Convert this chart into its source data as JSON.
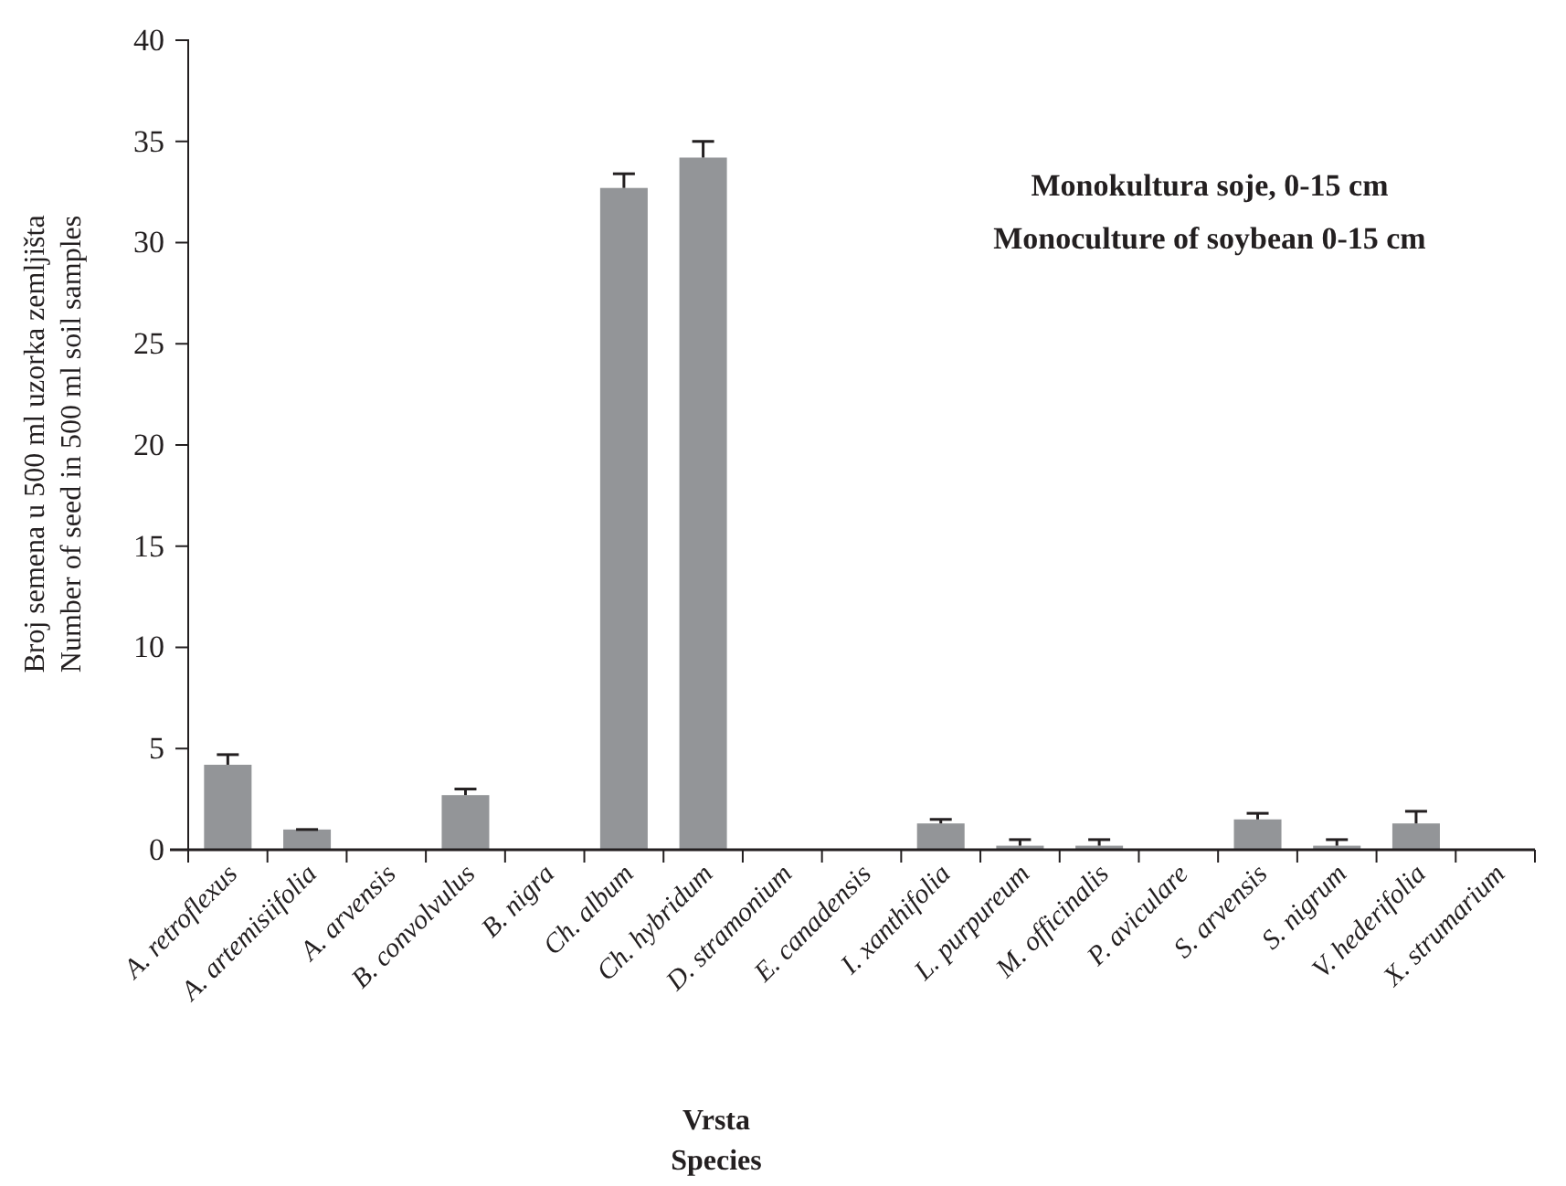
{
  "chart_data": {
    "type": "bar",
    "title": "Monokultura soje, 0-15 cm",
    "subtitle": "Monoculture of soybean 0-15 cm",
    "xlabel": "Vrsta\nSpecies",
    "ylabel": "Broj semena u 500 ml uzorka  zemljišta\nNumber of seed in 500 ml soil samples",
    "categories": [
      "A. retroflexus",
      "A. artemisiifolia",
      "A. arvensis",
      "B. convolvulus",
      "B. nigra",
      "Ch. album",
      "Ch. hybridum",
      "D. stramonium",
      "E.  canadensis",
      "I. xanthifolia",
      "L. purpureum",
      "M. officinalis",
      "P. aviculare",
      "S. arvensis",
      "S. nigrum",
      "V. hederifolia",
      "X. strumarium"
    ],
    "values": [
      4.2,
      1.0,
      0,
      2.7,
      0,
      32.7,
      34.2,
      0,
      0,
      1.3,
      0.2,
      0.2,
      0,
      1.5,
      0.2,
      1.3,
      0
    ],
    "errors": [
      [
        4.2,
        4.7
      ],
      [
        1.0,
        1.0
      ],
      null,
      [
        2.7,
        3.0
      ],
      null,
      [
        32.7,
        33.4
      ],
      [
        34.2,
        35.0
      ],
      null,
      null,
      [
        1.3,
        1.5
      ],
      [
        0.2,
        0.5
      ],
      [
        0.2,
        0.5
      ],
      null,
      [
        1.5,
        1.8
      ],
      [
        0.2,
        0.5
      ],
      [
        1.3,
        1.9
      ],
      null
    ],
    "color": "#939598",
    "ylim": [
      0,
      40
    ],
    "yticks": [
      0,
      5,
      10,
      15,
      20,
      25,
      30,
      35,
      40
    ],
    "grid": false
  }
}
